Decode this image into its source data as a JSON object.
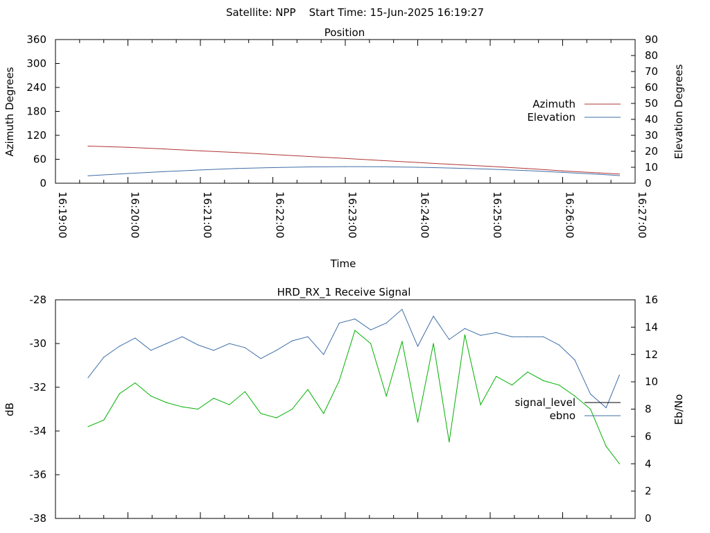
{
  "page_title": "Satellite: NPP    Start Time: 15-Jun-2025 16:19:27",
  "chart_data": [
    {
      "type": "line",
      "title": "Position",
      "xlabel": "Time",
      "ylabel": "Azimuth Degrees",
      "y2label": "Elevation Degrees",
      "x_ticks": [
        "16:19:00",
        "16:20:00",
        "16:21:00",
        "16:22:00",
        "16:23:00",
        "16:24:00",
        "16:25:00",
        "16:26:00",
        "16:27:00"
      ],
      "x_range": [
        "16:19:00",
        "16:27:00"
      ],
      "ylim": [
        0,
        360
      ],
      "y_ticks": [
        0,
        60,
        120,
        180,
        240,
        300,
        360
      ],
      "y2lim": [
        0,
        90
      ],
      "y2_ticks": [
        0,
        10,
        20,
        30,
        40,
        50,
        60,
        70,
        80,
        90
      ],
      "legend_position": "right",
      "series": [
        {
          "name": "Azimuth",
          "axis": "left",
          "color": "#b03535",
          "x": [
            "16:19:27",
            "16:20:00",
            "16:20:30",
            "16:21:00",
            "16:21:30",
            "16:22:00",
            "16:22:30",
            "16:23:00",
            "16:23:30",
            "16:24:00",
            "16:24:30",
            "16:25:00",
            "16:25:30",
            "16:26:00",
            "16:26:30",
            "16:26:47"
          ],
          "y": [
            93,
            90,
            86,
            81,
            77,
            72,
            67,
            62,
            57,
            52,
            47,
            42,
            37,
            31,
            26,
            23
          ]
        },
        {
          "name": "Elevation",
          "axis": "right",
          "color": "#3e6ea6",
          "x": [
            "16:19:27",
            "16:20:00",
            "16:20:30",
            "16:21:00",
            "16:21:30",
            "16:22:00",
            "16:22:30",
            "16:23:00",
            "16:23:30",
            "16:24:00",
            "16:24:30",
            "16:25:00",
            "16:25:30",
            "16:26:00",
            "16:26:30",
            "16:26:47"
          ],
          "y": [
            4.7,
            6.1,
            7.3,
            8.3,
            9.2,
            9.8,
            10.2,
            10.4,
            10.3,
            10.0,
            9.5,
            8.8,
            7.9,
            6.8,
            5.6,
            4.8
          ]
        }
      ]
    },
    {
      "type": "line",
      "title": "HRD_RX_1 Receive Signal",
      "ylabel": "dB",
      "y2label": "Eb/No",
      "x_range": [
        "16:19:00",
        "16:27:00"
      ],
      "ylim": [
        -38,
        -28
      ],
      "y_ticks": [
        -38,
        -36,
        -34,
        -32,
        -30,
        -28
      ],
      "y2lim": [
        0,
        16
      ],
      "y2_ticks": [
        0,
        2,
        4,
        6,
        8,
        10,
        12,
        14,
        16
      ],
      "legend_position": "right",
      "series": [
        {
          "name": "signal_level",
          "axis": "left",
          "color": "#00b000",
          "legend_color": "#000000",
          "x": [
            "16:19:27",
            "16:19:40",
            "16:19:53",
            "16:20:06",
            "16:20:19",
            "16:20:32",
            "16:20:45",
            "16:20:58",
            "16:21:11",
            "16:21:24",
            "16:21:37",
            "16:21:50",
            "16:22:03",
            "16:22:16",
            "16:22:29",
            "16:22:42",
            "16:22:55",
            "16:23:08",
            "16:23:21",
            "16:23:34",
            "16:23:47",
            "16:24:00",
            "16:24:13",
            "16:24:26",
            "16:24:39",
            "16:24:52",
            "16:25:05",
            "16:25:18",
            "16:25:31",
            "16:25:44",
            "16:25:57",
            "16:26:10",
            "16:26:23",
            "16:26:36",
            "16:26:47"
          ],
          "y": [
            -33.8,
            -33.5,
            -32.3,
            -31.8,
            -32.4,
            -32.7,
            -32.9,
            -33.0,
            -32.5,
            -32.8,
            -32.2,
            -33.2,
            -33.4,
            -33.0,
            -32.1,
            -33.2,
            -31.7,
            -29.4,
            -30.0,
            -32.4,
            -29.9,
            -33.6,
            -30.0,
            -34.5,
            -29.6,
            -32.8,
            -31.5,
            -31.9,
            -31.3,
            -31.7,
            -31.9,
            -32.4,
            -33.0,
            -34.7,
            -35.5
          ]
        },
        {
          "name": "ebno",
          "axis": "right",
          "color": "#3e6ea6",
          "x": [
            "16:19:27",
            "16:19:40",
            "16:19:53",
            "16:20:06",
            "16:20:19",
            "16:20:32",
            "16:20:45",
            "16:20:58",
            "16:21:11",
            "16:21:24",
            "16:21:37",
            "16:21:50",
            "16:22:03",
            "16:22:16",
            "16:22:29",
            "16:22:42",
            "16:22:55",
            "16:23:08",
            "16:23:21",
            "16:23:34",
            "16:23:47",
            "16:24:00",
            "16:24:13",
            "16:24:26",
            "16:24:39",
            "16:24:52",
            "16:25:05",
            "16:25:18",
            "16:25:31",
            "16:25:44",
            "16:25:57",
            "16:26:10",
            "16:26:23",
            "16:26:36",
            "16:26:47"
          ],
          "y": [
            10.3,
            11.8,
            12.6,
            13.2,
            12.3,
            12.8,
            13.3,
            12.7,
            12.3,
            12.8,
            12.5,
            11.7,
            12.3,
            13.0,
            13.3,
            12.0,
            14.3,
            14.6,
            13.8,
            14.3,
            15.3,
            12.6,
            14.8,
            13.1,
            13.9,
            13.4,
            13.6,
            13.3,
            13.3,
            13.3,
            12.7,
            11.6,
            9.1,
            8.1,
            10.5
          ]
        }
      ]
    }
  ]
}
